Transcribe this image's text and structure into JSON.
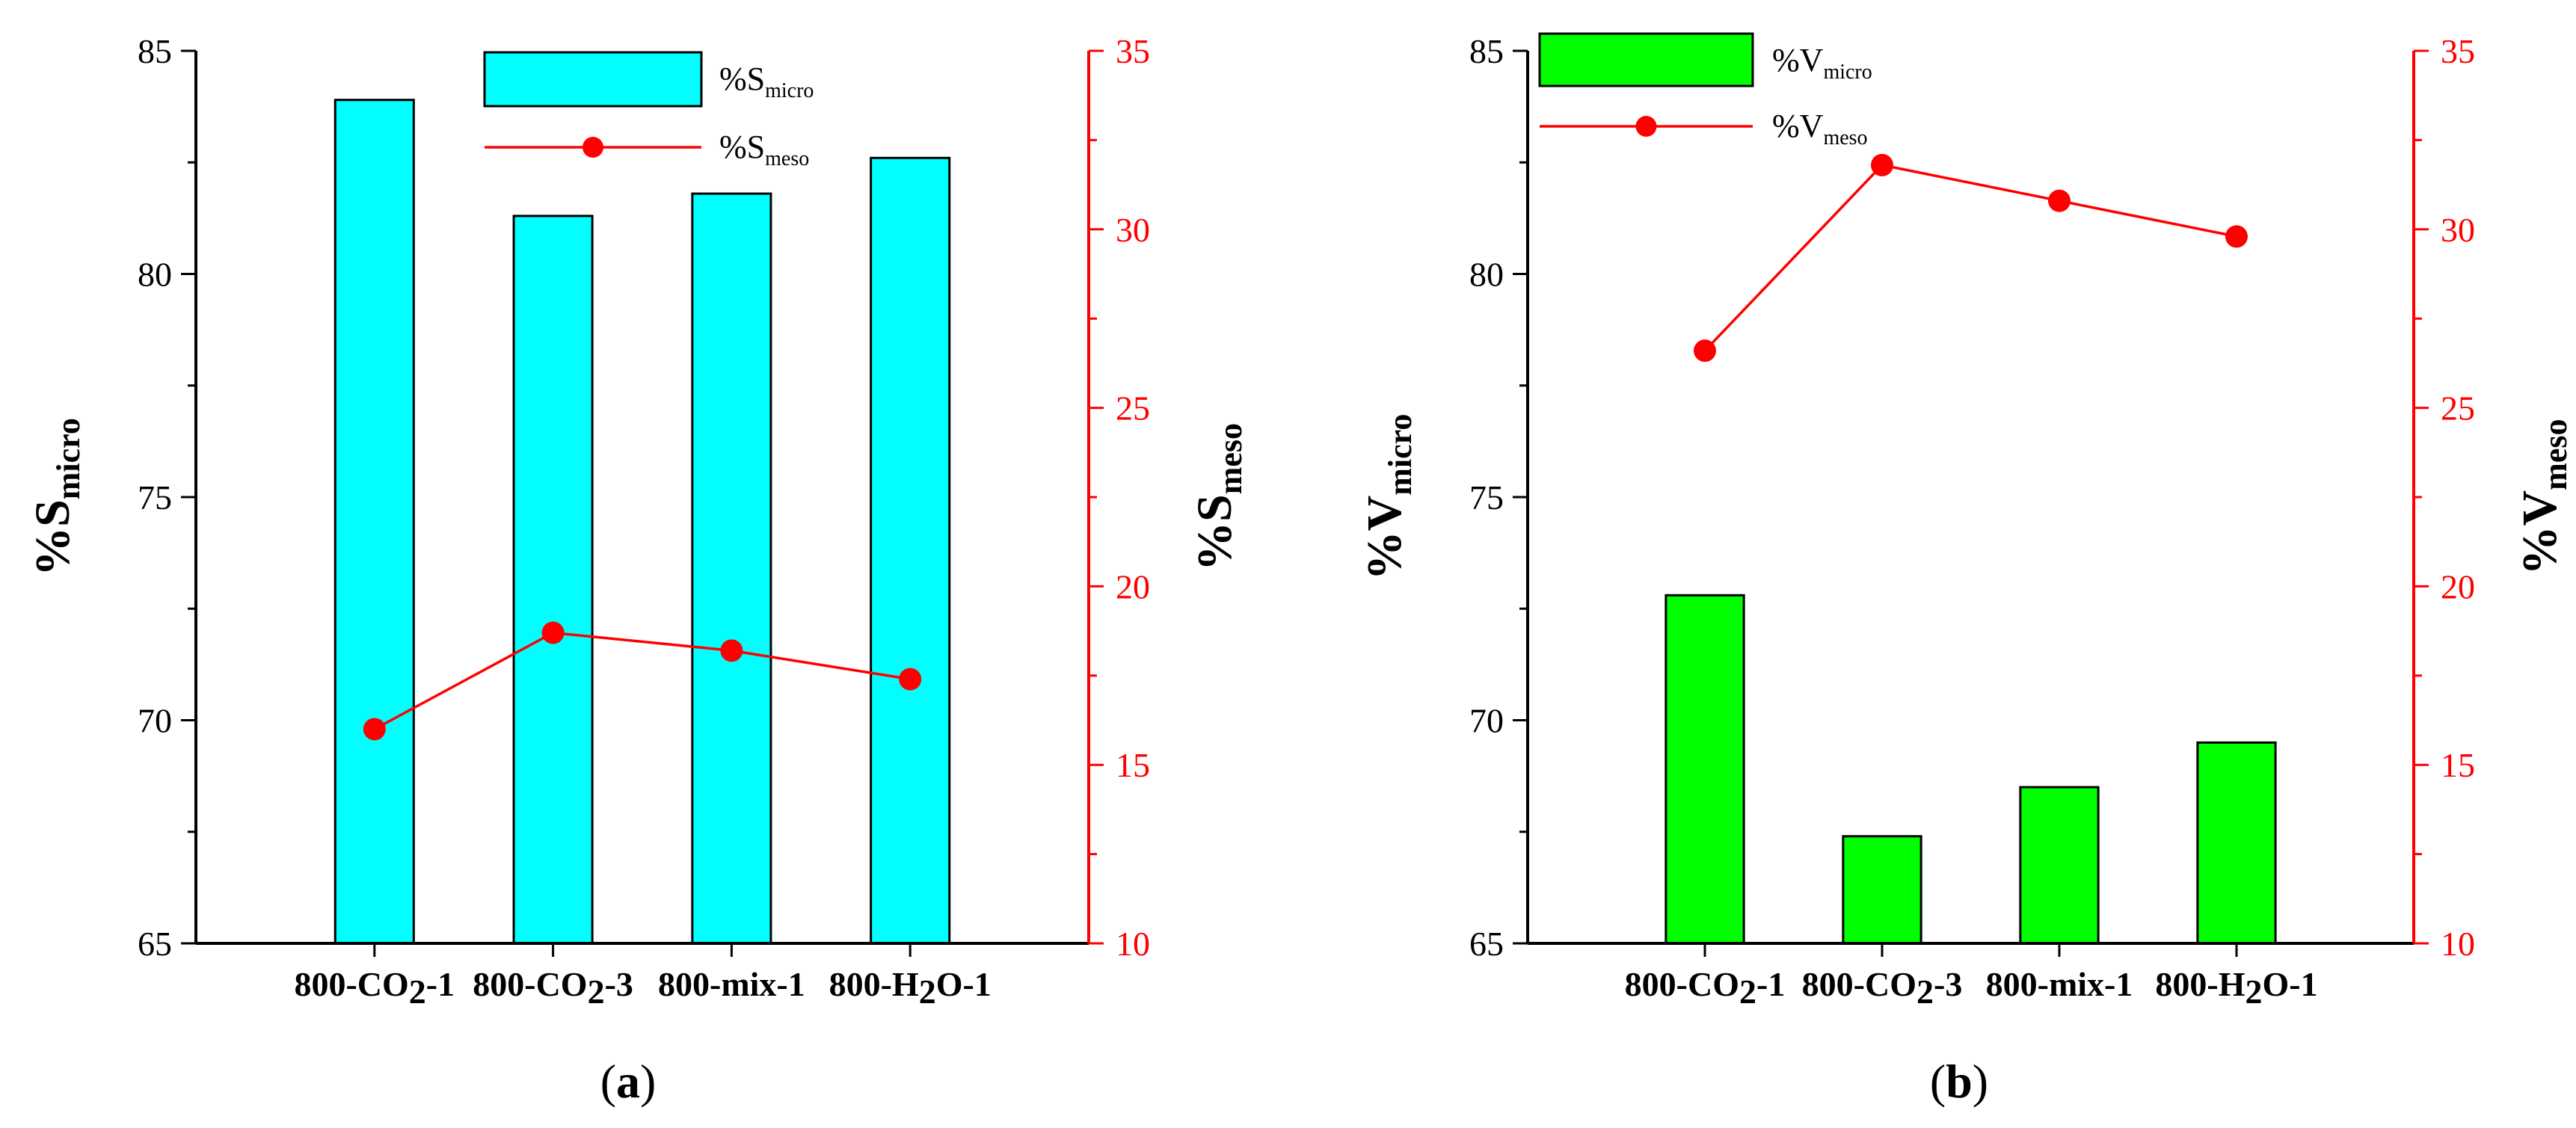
{
  "chart_data": [
    {
      "type": "bar",
      "panel_label": "(a)",
      "categories": [
        "800-CO2-1",
        "800-CO2-3",
        "800-mix-1",
        "800-H2O-1"
      ],
      "category_labels": [
        {
          "parts": [
            "800-CO",
            "2",
            "-1"
          ]
        },
        {
          "parts": [
            "800-CO",
            "2",
            "-3"
          ]
        },
        {
          "parts": [
            "800-mix-1",
            "",
            ""
          ]
        },
        {
          "parts": [
            "800-H",
            "2",
            "O-1"
          ]
        }
      ],
      "series": [
        {
          "name": "%Smicro",
          "label_main": "%S",
          "label_sub": "micro",
          "type": "bar",
          "axis": "left",
          "color": "#00ffff",
          "values": [
            83.9,
            81.3,
            81.8,
            82.6
          ]
        },
        {
          "name": "%Smeso",
          "label_main": "%S",
          "label_sub": "meso",
          "type": "line",
          "axis": "right",
          "color": "#ff0000",
          "values": [
            16.0,
            18.7,
            18.2,
            17.4
          ]
        }
      ],
      "ylabel_main": "%S",
      "ylabel_sub": "micro",
      "y2label_main": "%S",
      "y2label_sub": "meso",
      "ylim": [
        65,
        85
      ],
      "yticks": [
        65,
        70,
        75,
        80,
        85
      ],
      "y2lim": [
        10,
        35
      ],
      "y2ticks": [
        10,
        15,
        20,
        25,
        30,
        35
      ],
      "legend_position": "top-center"
    },
    {
      "type": "bar",
      "panel_label": "(b)",
      "categories": [
        "800-CO2-1",
        "800-CO2-3",
        "800-mix-1",
        "800-H2O-1"
      ],
      "category_labels": [
        {
          "parts": [
            "800-CO",
            "2",
            "-1"
          ]
        },
        {
          "parts": [
            "800-CO",
            "2",
            "-3"
          ]
        },
        {
          "parts": [
            "800-mix-1",
            "",
            ""
          ]
        },
        {
          "parts": [
            "800-H",
            "2",
            "O-1"
          ]
        }
      ],
      "series": [
        {
          "name": "%Vmicro",
          "label_main": "%V",
          "label_sub": "micro",
          "type": "bar",
          "axis": "left",
          "color": "#00ff00",
          "values": [
            72.8,
            67.4,
            68.5,
            69.5
          ]
        },
        {
          "name": "%Vmeso",
          "label_main": "%V",
          "label_sub": "meso",
          "type": "line",
          "axis": "right",
          "color": "#ff0000",
          "values": [
            26.6,
            31.8,
            30.8,
            29.8
          ]
        }
      ],
      "ylabel_main": "%V",
      "ylabel_sub": "micro",
      "y2label_main": "%V",
      "y2label_sub": "meso",
      "ylim": [
        65,
        85
      ],
      "yticks": [
        65,
        70,
        75,
        80,
        85
      ],
      "y2lim": [
        10,
        35
      ],
      "y2ticks": [
        10,
        15,
        20,
        25,
        30,
        35
      ],
      "legend_position": "top-left"
    }
  ]
}
